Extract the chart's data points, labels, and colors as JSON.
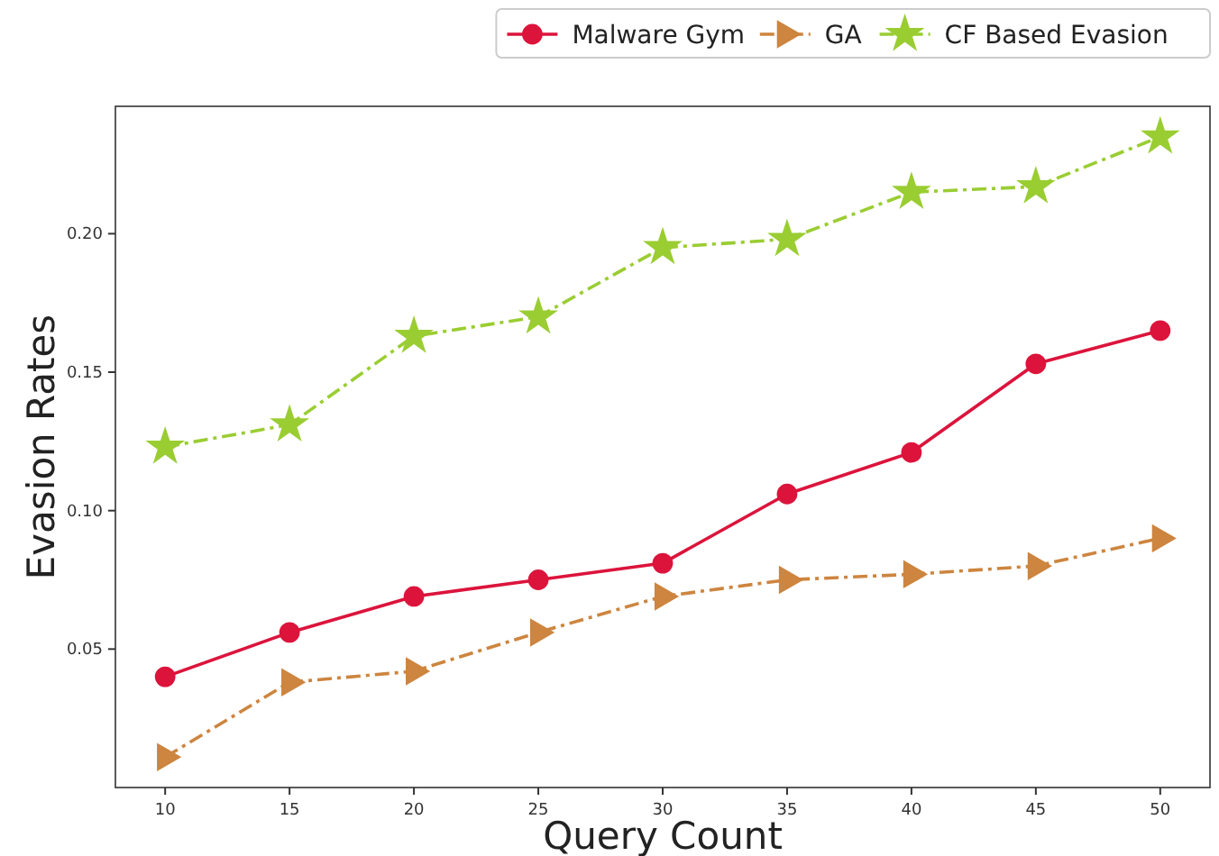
{
  "chart_data": {
    "type": "line",
    "xlabel": "Query Count",
    "ylabel": "Evasion Rates",
    "x": [
      10,
      15,
      20,
      25,
      30,
      35,
      40,
      45,
      50
    ],
    "xlim": [
      8,
      52
    ],
    "xticks": [
      10,
      15,
      20,
      25,
      30,
      35,
      40,
      45,
      50
    ],
    "ylim": [
      0,
      0.246
    ],
    "yticks": [
      {
        "value": 0.05,
        "label": "0.05"
      },
      {
        "value": 0.1,
        "label": "0.10"
      },
      {
        "value": 0.15,
        "label": "0.15"
      },
      {
        "value": 0.2,
        "label": "0.20"
      }
    ],
    "grid": false,
    "legend": "top right",
    "series": [
      {
        "name": "Malware Gym",
        "color": "#dc143c",
        "marker": "circle",
        "line_style": "solid",
        "values": [
          0.04,
          0.056,
          0.069,
          0.075,
          0.081,
          0.106,
          0.121,
          0.153,
          0.165
        ]
      },
      {
        "name": "GA",
        "color": "#cd853f",
        "marker": "triangle",
        "line_style": "dashed",
        "values": [
          0.011,
          0.038,
          0.042,
          0.056,
          0.069,
          0.075,
          0.077,
          0.08,
          0.09
        ]
      },
      {
        "name": "CF Based Evasion",
        "color": "#9acd32",
        "marker": "star",
        "line_style": "dashed",
        "values": [
          0.123,
          0.131,
          0.163,
          0.17,
          0.195,
          0.198,
          0.215,
          0.217,
          0.235
        ]
      }
    ]
  }
}
